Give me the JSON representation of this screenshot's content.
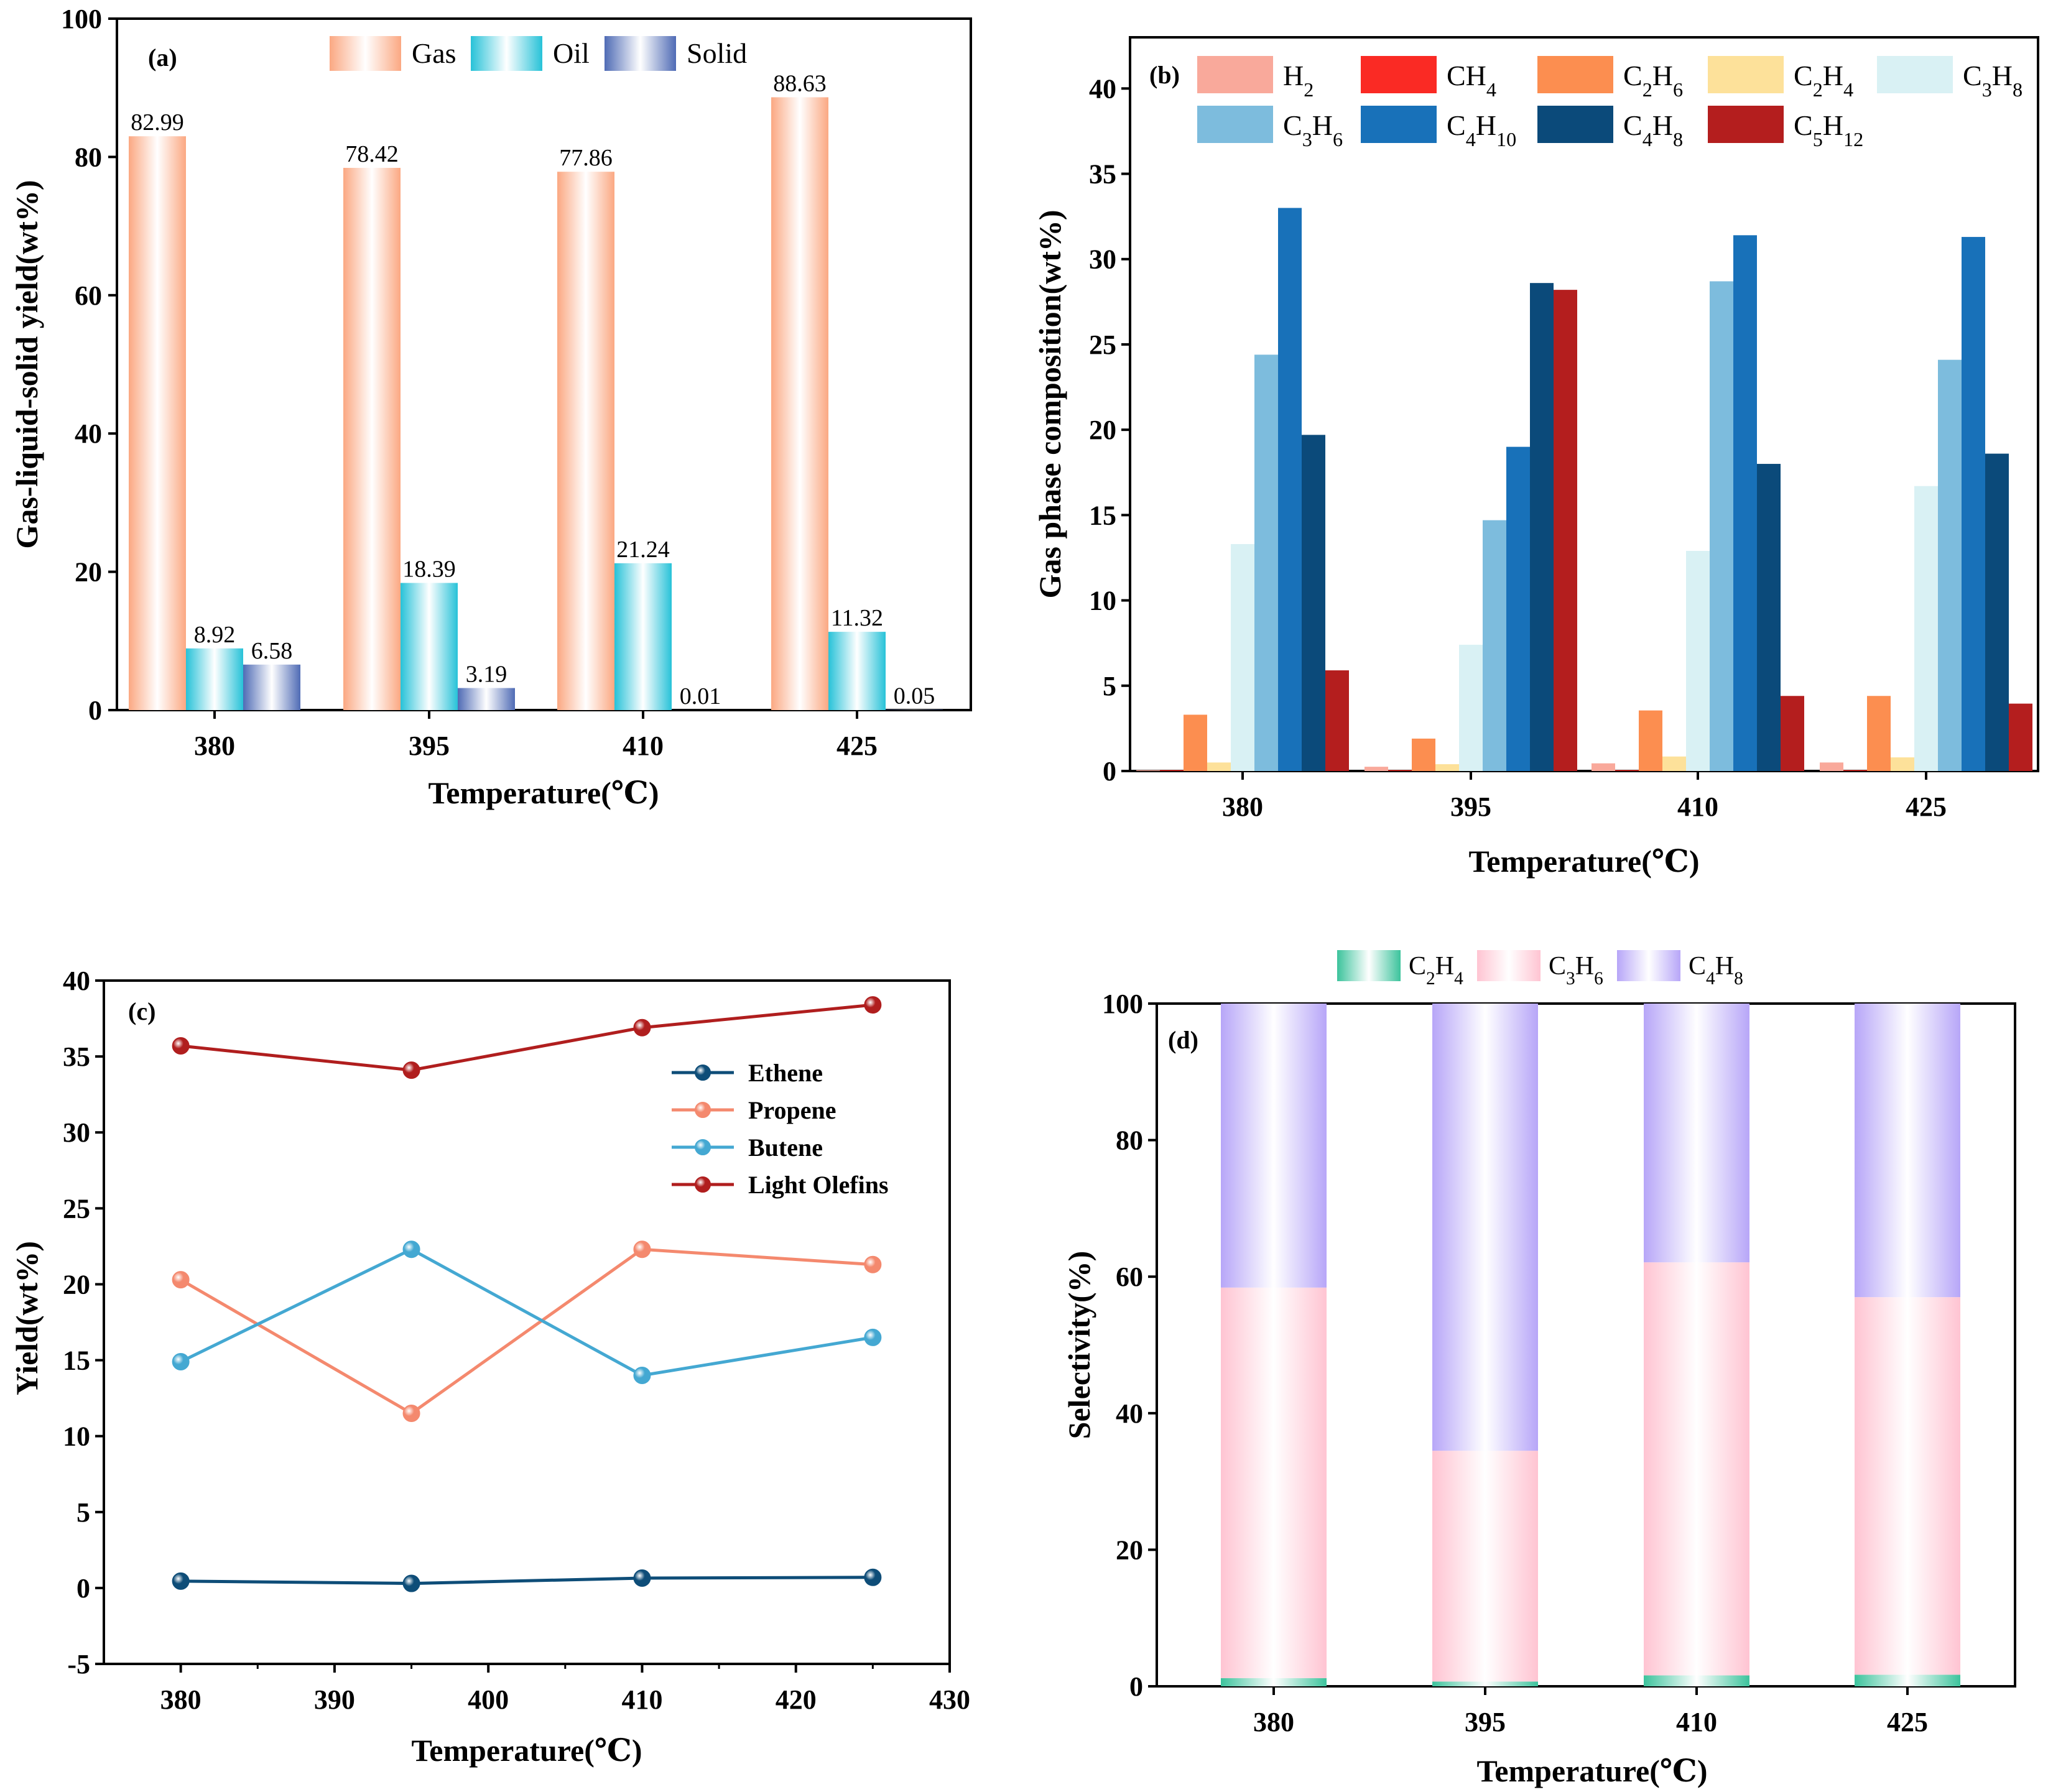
{
  "chart_data": [
    {
      "panel": "(a)",
      "type": "bar",
      "categories": [
        "380",
        "395",
        "410",
        "425"
      ],
      "series": [
        {
          "name": "Gas",
          "values": [
            82.99,
            78.42,
            77.86,
            88.63
          ],
          "labels": [
            "82.99",
            "78.42",
            "77.86",
            "88.63"
          ],
          "color": "#fba882"
        },
        {
          "name": "Oil",
          "values": [
            8.92,
            18.39,
            21.24,
            11.32
          ],
          "labels": [
            "8.92",
            "18.39",
            "21.24",
            "11.32"
          ],
          "color": "#27c2d8"
        },
        {
          "name": "Solid",
          "values": [
            6.58,
            3.19,
            0.01,
            0.05
          ],
          "labels": [
            "6.58",
            "3.19",
            "0.01",
            "0.05"
          ],
          "color": "#4f6bb5"
        }
      ],
      "xlabel": "Temperature(℃)",
      "ylabel": "Gas-liquid-solid yield(wt%)",
      "ylim": [
        0,
        100
      ],
      "yticks": [
        "0",
        "20",
        "40",
        "60",
        "80",
        "100"
      ],
      "legend": "top"
    },
    {
      "panel": "(b)",
      "type": "bar",
      "categories": [
        "380",
        "395",
        "410",
        "425"
      ],
      "series": [
        {
          "name": "H2",
          "base": "H",
          "sub": "2",
          "values": [
            0.05,
            0.25,
            0.45,
            0.5
          ],
          "color": "#f9a99b"
        },
        {
          "name": "CH4",
          "base": "CH",
          "sub": "4",
          "values": [
            0.05,
            0.05,
            0.05,
            0.05
          ],
          "color": "#fa2a24"
        },
        {
          "name": "C2H6",
          "base": "C",
          "sub": "2",
          "mid": "H",
          "sub2": "6",
          "values": [
            3.3,
            1.9,
            3.55,
            4.4
          ],
          "color": "#fc8e50"
        },
        {
          "name": "C2H4",
          "base": "C",
          "sub": "2",
          "mid": "H",
          "sub2": "4",
          "values": [
            0.5,
            0.4,
            0.85,
            0.8
          ],
          "color": "#fde19a"
        },
        {
          "name": "C3H8",
          "base": "C",
          "sub": "3",
          "mid": "H",
          "sub2": "8",
          "values": [
            13.3,
            7.4,
            12.9,
            16.7
          ],
          "color": "#d9f1f4"
        },
        {
          "name": "C3H6",
          "base": "C",
          "sub": "3",
          "mid": "H",
          "sub2": "6",
          "values": [
            24.4,
            14.7,
            28.7,
            24.1
          ],
          "color": "#7dbcdd"
        },
        {
          "name": "C4H10",
          "base": "C",
          "sub": "4",
          "mid": "H",
          "sub2": "10",
          "values": [
            33.0,
            19.0,
            31.4,
            31.3
          ],
          "color": "#1871b9"
        },
        {
          "name": "C4H8",
          "base": "C",
          "sub": "4",
          "mid": "H",
          "sub2": "8",
          "values": [
            19.7,
            28.6,
            18.0,
            18.6
          ],
          "color": "#0b4a7a"
        },
        {
          "name": "C5H12",
          "base": "C",
          "sub": "5",
          "mid": "H",
          "sub2": "12",
          "values": [
            5.9,
            28.2,
            4.4,
            3.95
          ],
          "color": "#b41e1e"
        }
      ],
      "xlabel": "Temperature(℃)",
      "ylabel": "Gas phase composition(wt%)",
      "ylim": [
        0,
        43
      ],
      "yticks": [
        "0",
        "5",
        "10",
        "15",
        "20",
        "25",
        "30",
        "35",
        "40"
      ],
      "legend": "top"
    },
    {
      "panel": "(c)",
      "type": "line",
      "x": [
        380,
        395,
        410,
        425
      ],
      "series": [
        {
          "name": "Ethene",
          "values": [
            0.45,
            0.3,
            0.65,
            0.7
          ],
          "color": "#0e4d78"
        },
        {
          "name": "Propene",
          "values": [
            20.3,
            11.5,
            22.3,
            21.3
          ],
          "color": "#f4896e"
        },
        {
          "name": "Butene",
          "values": [
            14.9,
            22.3,
            14.0,
            16.5
          ],
          "color": "#44a8d2"
        },
        {
          "name": "Light Olefins",
          "values": [
            35.7,
            34.1,
            36.9,
            38.4
          ],
          "color": "#b01e1e"
        }
      ],
      "xlabel": "Temperature(℃)",
      "ylabel": "Yield(wt%)",
      "xlim": [
        375,
        430
      ],
      "ylim": [
        -5,
        40
      ],
      "xticks": [
        "380",
        "390",
        "400",
        "410",
        "420",
        "430"
      ],
      "yticks": [
        "-5",
        "0",
        "5",
        "10",
        "15",
        "20",
        "25",
        "30",
        "35",
        "40"
      ],
      "legend": "upper-right"
    },
    {
      "panel": "(d)",
      "type": "bar",
      "stacked": true,
      "categories": [
        "380",
        "395",
        "410",
        "425"
      ],
      "series": [
        {
          "name": "C2H4",
          "base": "C",
          "sub": "2",
          "mid": "H",
          "sub2": "4",
          "values": [
            1.2,
            0.7,
            1.6,
            1.7
          ],
          "color": "#3cc39c"
        },
        {
          "name": "C3H6",
          "base": "C",
          "sub": "3",
          "mid": "H",
          "sub2": "6",
          "values": [
            57.2,
            33.8,
            60.5,
            55.3
          ],
          "color": "#ffc4d2"
        },
        {
          "name": "C4H8",
          "base": "C",
          "sub": "4",
          "mid": "H",
          "sub2": "8",
          "values": [
            41.6,
            65.5,
            37.9,
            43.0
          ],
          "color": "#b7a6f8"
        }
      ],
      "xlabel": "Temperature(℃)",
      "ylabel": "Selectivity(%)",
      "ylim": [
        0,
        100
      ],
      "yticks": [
        "0",
        "20",
        "40",
        "60",
        "80",
        "100"
      ],
      "legend": "top"
    }
  ]
}
